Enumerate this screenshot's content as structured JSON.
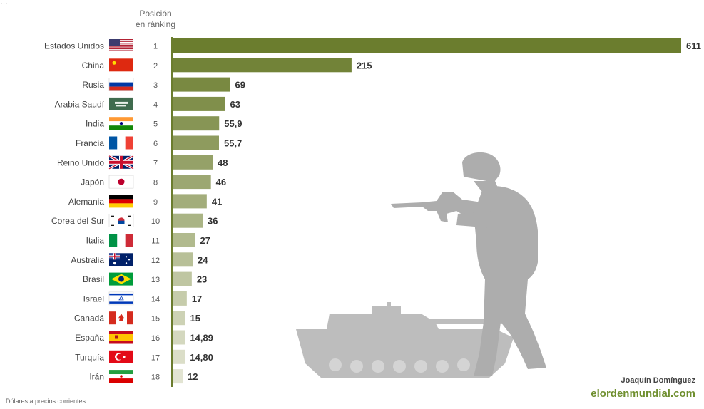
{
  "header_fragment": "…",
  "rank_header": [
    "Posición",
    "en ránking"
  ],
  "footnote": "Dólares a precios corrientes.",
  "credit": {
    "author": "Joaquín Domínguez",
    "site": "elordenmundial.com"
  },
  "colors": {
    "bar_dark": "#6b7d2e",
    "bar_light": "#e2e4d2",
    "axis": "#6b7d2e",
    "silhouette": "#b3b3b3",
    "site": "#6f8f2f"
  },
  "chart_data": {
    "type": "bar",
    "orientation": "horizontal",
    "categories": [
      "Estados Unidos",
      "China",
      "Rusia",
      "Arabia Saudí",
      "India",
      "Francia",
      "Reino Unido",
      "Japón",
      "Alemania",
      "Corea del Sur",
      "Italia",
      "Australia",
      "Brasil",
      "Israel",
      "Canadá",
      "España",
      "Turquía",
      "Irán"
    ],
    "ranks": [
      "1",
      "2",
      "3",
      "4",
      "5",
      "6",
      "7",
      "8",
      "9",
      "10",
      "11",
      "12",
      "13",
      "14",
      "15",
      "16",
      "17",
      "18"
    ],
    "values": [
      611,
      215,
      69,
      63,
      55.9,
      55.7,
      48,
      46,
      41,
      36,
      27,
      24,
      23,
      17,
      15,
      14.89,
      14.8,
      12
    ],
    "value_labels": [
      "611",
      "215",
      "69",
      "63",
      "55,9",
      "55,7",
      "48",
      "46",
      "41",
      "36",
      "27",
      "24",
      "23",
      "17",
      "15",
      "14,89",
      "14,80",
      "12"
    ],
    "flags": [
      "us-flag",
      "china-flag",
      "russia-flag",
      "saudi-flag",
      "india-flag",
      "france-flag",
      "uk-flag",
      "japan-flag",
      "germany-flag",
      "south-korea-flag",
      "italy-flag",
      "australia-flag",
      "brazil-flag",
      "israel-flag",
      "canada-flag",
      "spain-flag",
      "turkey-flag",
      "iran-flag"
    ],
    "xlim": [
      0,
      611
    ]
  }
}
